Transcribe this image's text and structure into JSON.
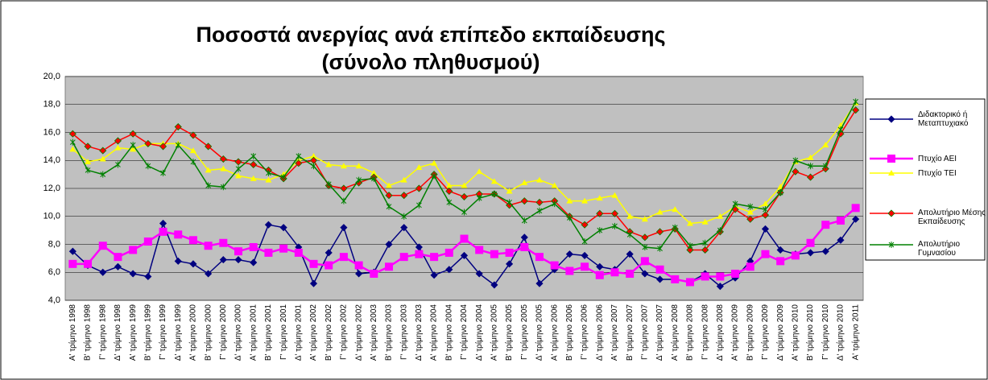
{
  "chart_data": {
    "type": "line",
    "title": "Ποσοστά ανεργίας ανά επίπεδο εκπαίδευσης",
    "subtitle": "(σύνολο πληθυσμού)",
    "categories": [
      "Α' τρίμηνο 1998",
      "Β' τρίμηνο 1998",
      "Γ' τρίμηνο 1998",
      "Δ' τρίμηνο 1998",
      "Α' τρίμηνο 1999",
      "Β' τρίμηνο 1999",
      "Γ' τρίμηνο 1999",
      "Δ' τρίμηνο 1999",
      "Α' τρίμηνο 2000",
      "Β' τρίμηνο 2000",
      "Γ' τρίμηνο 2000",
      "Δ' τρίμηνο 2000",
      "Α' τρίμηνο 2001",
      "Β' τρίμηνο 2001",
      "Γ' τρίμηνο 2001",
      "Δ' τρίμηνο 2001",
      "Α' τρίμηνο 2002",
      "Β' τρίμηνο 2002",
      "Γ' τρίμηνο 2002",
      "Δ' τρίμηνο 2002",
      "Α' τρίμηνο 2003",
      "Β' τρίμηνο 2003",
      "Γ' τρίμηνο 2003",
      "Δ' τρίμηνο 2003",
      "Α' τρίμηνο 2004",
      "Β' τρίμηνο 2004",
      "Γ' τρίμηνο 2004",
      "Δ' τρίμηνο 2004",
      "Α' τρίμηνο 2005",
      "Β' τρίμηνο 2005",
      "Γ' τρίμηνο 2005",
      "Δ' τρίμηνο 2005",
      "Α' τρίμηνο 2006",
      "Β' τρίμηνο 2006",
      "Γ' τρίμηνο 2006",
      "Δ' τρίμηνο 2006",
      "Α' τρίμηνο 2007",
      "Β' τρίμηνο 2007",
      "Γ' τρίμηνο 2007",
      "Δ' τρίμηνο 2007",
      "Α' τρίμηνο 2008",
      "Β' τρίμηνο 2008",
      "Γ' τρίμηνο 2008",
      "Δ' τρίμηνο 2008",
      "Α' τρίμηνο 2009",
      "Β' τρίμηνο 2009",
      "Γ' τρίμηνο 2009",
      "Δ' τρίμηνο 2009",
      "Α' τρίμηνο 2010",
      "Β' τρίμηνο 2010",
      "Γ' τρίμηνο 2010",
      "Δ' τρίμηνο 2010",
      "Α' τρίμηνο 2011"
    ],
    "series": [
      {
        "name": "Διδακτορικό ή Μεταπτυχιακό",
        "color": "#000080",
        "marker": "diamond",
        "values": [
          7.5,
          6.5,
          6.0,
          6.4,
          5.9,
          5.7,
          9.5,
          6.8,
          6.6,
          5.9,
          6.9,
          6.9,
          6.7,
          9.4,
          9.2,
          7.8,
          5.2,
          7.4,
          9.2,
          5.9,
          6.0,
          8.0,
          9.2,
          7.8,
          5.8,
          6.2,
          7.2,
          5.9,
          5.1,
          6.6,
          8.5,
          5.2,
          6.2,
          7.3,
          7.2,
          6.4,
          6.2,
          7.3,
          5.9,
          5.5,
          5.5,
          5.3,
          5.9,
          5.0,
          5.6,
          6.8,
          9.1,
          7.6,
          7.3,
          7.4,
          7.5,
          8.3,
          9.8
        ]
      },
      {
        "name": "Πτυχίο ΑΕΙ",
        "color": "#ff00ff",
        "marker": "square",
        "values": [
          6.6,
          6.6,
          7.9,
          7.1,
          7.6,
          8.2,
          8.9,
          8.7,
          8.3,
          7.9,
          8.1,
          7.5,
          7.8,
          7.4,
          7.7,
          7.4,
          6.6,
          6.5,
          7.1,
          6.5,
          5.9,
          6.4,
          7.1,
          7.3,
          7.1,
          7.4,
          8.4,
          7.6,
          7.3,
          7.4,
          7.8,
          7.1,
          6.5,
          6.1,
          6.4,
          5.8,
          6.0,
          5.9,
          6.8,
          6.2,
          5.5,
          5.3,
          5.7,
          5.7,
          5.9,
          6.4,
          7.3,
          6.8,
          7.2,
          8.1,
          9.4,
          9.7,
          10.6
        ]
      },
      {
        "name": "Πτυχίο ΤΕΙ",
        "color": "#ffff00",
        "marker": "triangle",
        "values": [
          14.8,
          13.9,
          14.1,
          14.9,
          14.8,
          15.2,
          15.2,
          15.2,
          14.7,
          13.3,
          13.4,
          12.9,
          12.7,
          12.6,
          13.0,
          14.0,
          14.3,
          13.7,
          13.6,
          13.6,
          13.1,
          12.2,
          12.6,
          13.5,
          13.8,
          12.2,
          12.2,
          13.2,
          12.5,
          11.8,
          12.4,
          12.6,
          12.2,
          11.1,
          11.1,
          11.3,
          11.5,
          10.0,
          9.8,
          10.3,
          10.5,
          9.5,
          9.6,
          10.0,
          10.7,
          10.3,
          10.9,
          12.1,
          13.9,
          14.2,
          15.1,
          16.5,
          18.1
        ]
      },
      {
        "name": "Απολυτήριο Μέσης Εκπαίδευσης",
        "color": "#ff0000",
        "marker": "diamond",
        "values": [
          15.9,
          15.0,
          14.7,
          15.4,
          15.9,
          15.2,
          15.0,
          16.4,
          15.8,
          15.0,
          14.1,
          13.9,
          13.7,
          13.3,
          12.7,
          13.8,
          14.0,
          12.2,
          12.0,
          12.4,
          12.8,
          11.5,
          11.5,
          12.0,
          13.0,
          11.8,
          11.4,
          11.6,
          11.6,
          10.8,
          11.1,
          11.0,
          11.1,
          10.0,
          9.4,
          10.2,
          10.2,
          8.9,
          8.5,
          8.9,
          9.1,
          7.6,
          7.6,
          8.9,
          10.5,
          9.8,
          10.1,
          11.7,
          13.2,
          12.8,
          13.4,
          15.9,
          17.6
        ]
      },
      {
        "name": "Απολυτήριο Γυμνασίου",
        "color": "#008000",
        "marker": "star",
        "values": [
          15.3,
          13.3,
          13.0,
          13.7,
          15.1,
          13.6,
          13.1,
          15.1,
          13.9,
          12.2,
          12.1,
          13.4,
          14.3,
          13.1,
          12.8,
          14.3,
          13.6,
          12.3,
          11.1,
          12.6,
          12.7,
          10.7,
          10.0,
          10.8,
          12.9,
          11.0,
          10.3,
          11.3,
          11.6,
          11.0,
          9.7,
          10.4,
          10.9,
          9.9,
          8.2,
          9.0,
          9.3,
          8.7,
          7.8,
          7.7,
          9.2,
          7.9,
          8.1,
          9.0,
          10.9,
          10.7,
          10.5,
          11.7,
          14.0,
          13.6,
          13.6,
          16.2,
          18.2
        ]
      }
    ],
    "ylim": [
      4,
      20
    ],
    "yticks": [
      {
        "value": 4,
        "label": "4,0"
      },
      {
        "value": 6,
        "label": "6,0"
      },
      {
        "value": 8,
        "label": "8,0"
      },
      {
        "value": 10,
        "label": "10,0"
      },
      {
        "value": 12,
        "label": "12,0"
      },
      {
        "value": 14,
        "label": "14,0"
      },
      {
        "value": 16,
        "label": "16,0"
      },
      {
        "value": 18,
        "label": "18,0"
      },
      {
        "value": 20,
        "label": "20,0"
      }
    ],
    "grid": true
  }
}
